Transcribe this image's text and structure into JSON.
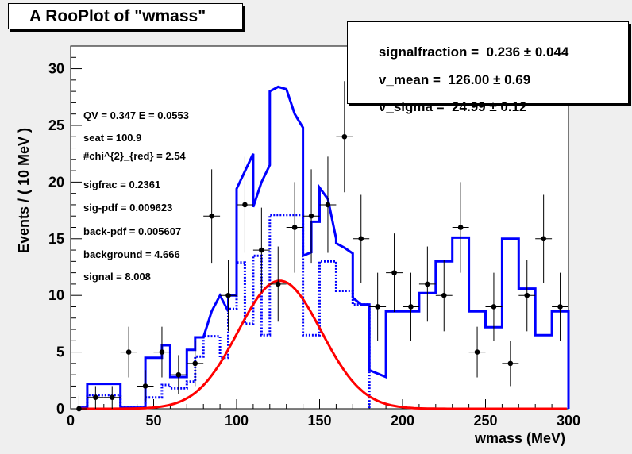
{
  "title": "A RooPlot of \"wmass\"",
  "params": [
    {
      "name": "signalfraction",
      "value": "0.236",
      "error": "0.044"
    },
    {
      "name": "v_mean",
      "value": "126.00",
      "error": "0.69"
    },
    {
      "name": "v_sigma",
      "value": "24.99",
      "error": "0.12"
    }
  ],
  "stats": [
    "QV = 0.347 E = 0.0553",
    "seat = 100.9",
    "#chi^{2}_{red} = 2.54",
    "sigfrac = 0.2361",
    "sig-pdf = 0.009623",
    "back-pdf = 0.005607",
    "background = 4.666",
    "signal = 8.008"
  ],
  "colors": {
    "background": "#efefef",
    "frame": "#ffffff",
    "total": "#0000ff",
    "background_component": "#0000ff",
    "signal": "#ff0000",
    "data": "#000000"
  },
  "chart_data": {
    "type": "scatter",
    "title": "A RooPlot of \"wmass\"",
    "xlabel": "wmass (MeV)",
    "ylabel": "Events / ( 10 MeV )",
    "xlim": [
      0,
      300
    ],
    "ylim": [
      0,
      32
    ],
    "xticks": [
      0,
      50,
      100,
      150,
      200,
      250,
      300
    ],
    "yticks": [
      0,
      5,
      10,
      15,
      20,
      25,
      30
    ],
    "grid": false,
    "data_points": {
      "name": "data",
      "x": [
        5,
        15,
        25,
        35,
        45,
        55,
        65,
        75,
        85,
        95,
        105,
        115,
        125,
        135,
        145,
        155,
        165,
        175,
        185,
        195,
        205,
        215,
        225,
        235,
        245,
        255,
        265,
        275,
        285,
        295
      ],
      "y": [
        0,
        1,
        1,
        5,
        2,
        5,
        3,
        4,
        17,
        10,
        18,
        14,
        11,
        16,
        17,
        18,
        24,
        15,
        9,
        12,
        9,
        11,
        10,
        16,
        5,
        9,
        4,
        10,
        15,
        9
      ],
      "x_error": 5
    },
    "curves": [
      {
        "style": "solid",
        "color": "#0000ff",
        "points": [
          [
            5,
            0
          ],
          [
            5,
            0.1
          ],
          [
            10,
            0.1
          ],
          [
            10,
            2.2
          ],
          [
            30,
            2.2
          ],
          [
            30,
            0.1
          ],
          [
            45,
            0.1
          ],
          [
            45,
            4.5
          ],
          [
            55,
            4.5
          ],
          [
            55,
            5.6
          ],
          [
            60,
            5.6
          ],
          [
            60,
            2.8
          ],
          [
            70,
            2.8
          ],
          [
            70,
            5.2
          ],
          [
            75,
            5.2
          ],
          [
            75,
            6.3
          ],
          [
            80,
            6.3
          ],
          [
            85,
            8.6
          ],
          [
            90,
            10
          ],
          [
            95,
            8.6
          ],
          [
            95,
            10
          ],
          [
            100,
            10
          ],
          [
            100,
            19.4
          ],
          [
            110,
            22.5
          ],
          [
            110,
            17.8
          ],
          [
            115,
            20
          ],
          [
            120,
            21.5
          ],
          [
            120,
            28
          ],
          [
            125,
            28.4
          ],
          [
            130,
            28.2
          ],
          [
            135,
            26
          ],
          [
            140,
            24.8
          ],
          [
            140,
            13.5
          ],
          [
            145,
            13.8
          ],
          [
            145,
            16.5
          ],
          [
            150,
            16.5
          ],
          [
            150,
            19.5
          ],
          [
            155,
            18.5
          ],
          [
            160,
            15
          ],
          [
            160,
            14.6
          ],
          [
            165,
            14.2
          ],
          [
            170,
            13.7
          ],
          [
            170,
            9.8
          ],
          [
            175,
            9.2
          ],
          [
            180,
            9.2
          ],
          [
            180,
            3.4
          ],
          [
            190,
            2.8
          ],
          [
            190,
            8.6
          ],
          [
            200,
            8.6
          ],
          [
            210,
            8.6
          ],
          [
            210,
            10.2
          ],
          [
            220,
            10.2
          ],
          [
            220,
            13
          ],
          [
            230,
            13
          ],
          [
            230,
            15.1
          ],
          [
            240,
            15.1
          ],
          [
            240,
            8.6
          ],
          [
            250,
            8.6
          ],
          [
            250,
            7.2
          ],
          [
            260,
            7.2
          ],
          [
            260,
            15
          ],
          [
            270,
            15
          ],
          [
            270,
            10.6
          ],
          [
            280,
            10.6
          ],
          [
            280,
            6.5
          ],
          [
            290,
            6.5
          ],
          [
            290,
            8.6
          ],
          [
            300,
            8.6
          ],
          [
            300,
            0
          ]
        ]
      },
      {
        "style": "dotted",
        "color": "#0000ff",
        "points": [
          [
            5,
            0.1
          ],
          [
            10,
            0.1
          ],
          [
            10,
            1.2
          ],
          [
            30,
            1.2
          ],
          [
            30,
            0.1
          ],
          [
            45,
            0.1
          ],
          [
            45,
            1
          ],
          [
            55,
            1
          ],
          [
            55,
            2.1
          ],
          [
            60,
            2.1
          ],
          [
            60,
            1.8
          ],
          [
            70,
            1.8
          ],
          [
            70,
            2.4
          ],
          [
            75,
            2.4
          ],
          [
            75,
            4.6
          ],
          [
            80,
            4.6
          ],
          [
            80,
            6.4
          ],
          [
            90,
            6.4
          ],
          [
            90,
            4.5
          ],
          [
            95,
            4.5
          ],
          [
            95,
            8.8
          ],
          [
            100,
            8.8
          ],
          [
            100,
            12.9
          ],
          [
            105,
            12.9
          ],
          [
            105,
            7.5
          ],
          [
            110,
            7.5
          ],
          [
            110,
            13.5
          ],
          [
            115,
            13.5
          ],
          [
            115,
            6.5
          ],
          [
            120,
            6.5
          ],
          [
            120,
            17.1
          ],
          [
            140,
            17.1
          ],
          [
            140,
            6.5
          ],
          [
            150,
            6.5
          ],
          [
            150,
            13
          ],
          [
            160,
            13
          ],
          [
            160,
            10.4
          ],
          [
            170,
            10.4
          ],
          [
            170,
            9.2
          ],
          [
            180,
            9.2
          ],
          [
            180,
            0
          ]
        ]
      },
      {
        "style": "solid",
        "color": "#ff0000",
        "shape": "gaussian",
        "mean": 126,
        "sigma": 24.99,
        "peak": 11.3
      }
    ]
  }
}
